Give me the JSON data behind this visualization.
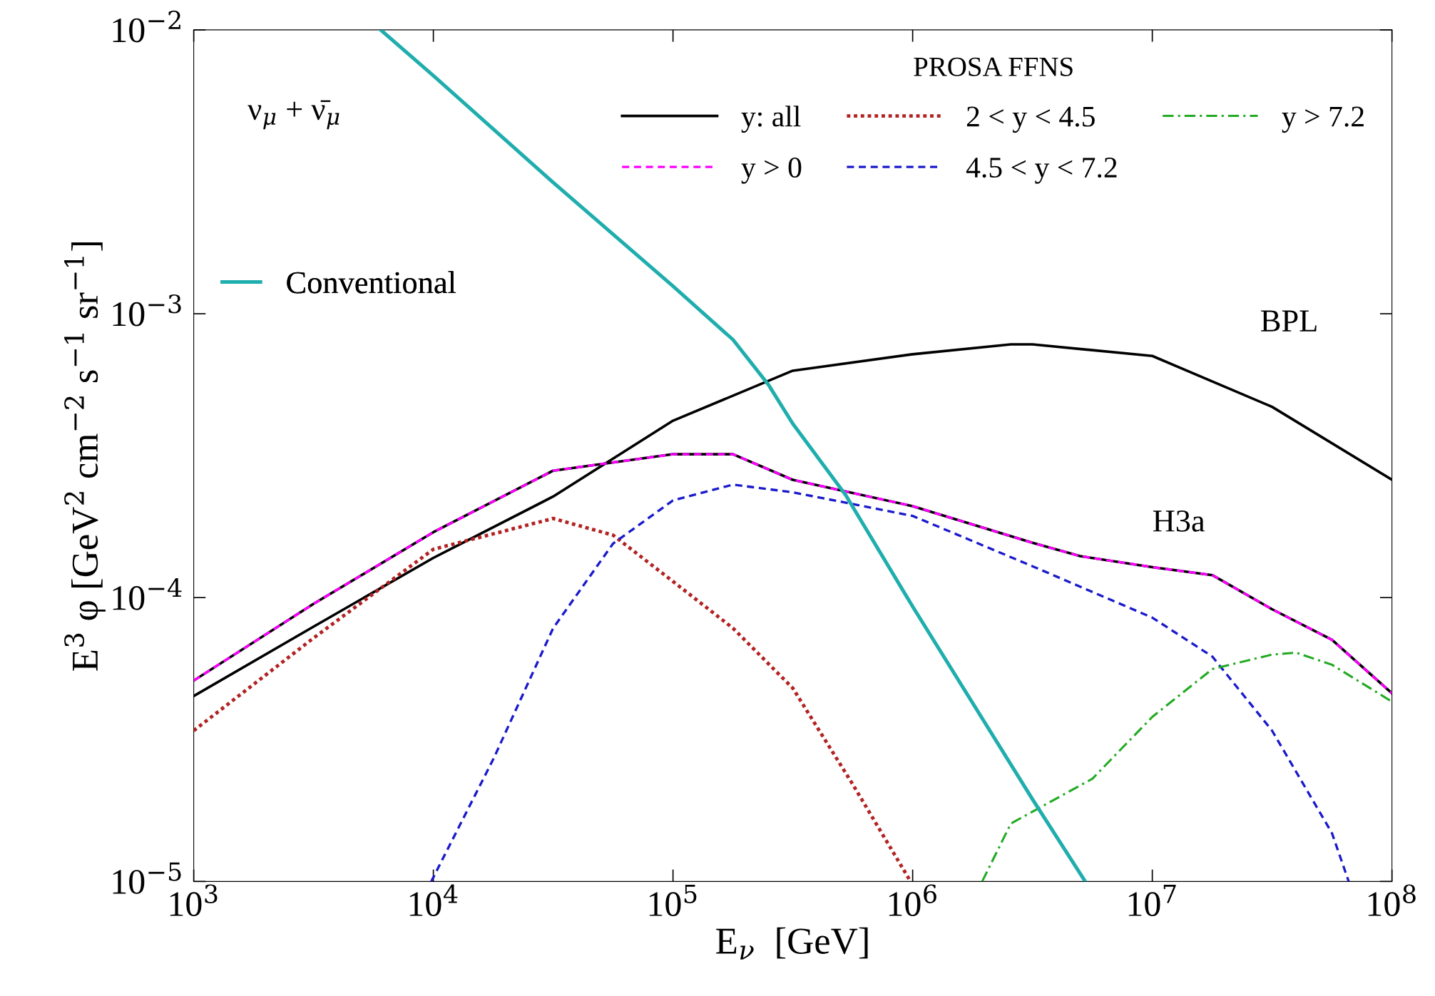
{
  "chart_data": {
    "type": "line",
    "xlabel": "E$_{ν}$  [GeV]",
    "ylabel": "E$^{3}$ φ [GeV$^{2}$ cm$^{−2}$ s$^{−1}$ sr$^{−1}$]",
    "log": "xy",
    "legend": "top right",
    "legend_title": "PROSA FFNS",
    "grid": false,
    "xlim": [
      1000,
      100000000
    ],
    "ylim": [
      1e-05,
      0.01
    ],
    "xticks": [
      {
        "value": 1000,
        "label": "10$^{3}$"
      },
      {
        "value": 10000,
        "label": "10$^{4}$"
      },
      {
        "value": 100000,
        "label": "10$^{5}$"
      },
      {
        "value": 1000000,
        "label": "10$^{6}$"
      },
      {
        "value": 10000000,
        "label": "10$^{7}$"
      },
      {
        "value": 100000000,
        "label": "10$^{8}$"
      }
    ],
    "yticks": [
      {
        "value": 1e-05,
        "label": "10$^{−5}$"
      },
      {
        "value": 0.0001,
        "label": "10$^{−4}$"
      },
      {
        "value": 0.001,
        "label": "10$^{−3}$"
      },
      {
        "value": 0.01,
        "label": "10$^{−2}$"
      }
    ],
    "annotations": [
      "ν$_{μ}$ + ν̄$_{μ}$",
      "BPL",
      "H3a"
    ],
    "series": [
      {
        "color": "#000000",
        "line_style": "solid",
        "x": [
          1000,
          3160,
          10000,
          31600,
          100000,
          316000,
          1000000,
          2570000,
          3160000,
          10000000,
          31600000,
          100000000
        ],
        "values": [
          4.5e-05,
          7.9e-05,
          0.000138,
          0.000227,
          0.00042,
          0.00063,
          0.00072,
          0.00078,
          0.00078,
          0.00071,
          0.00047,
          0.00026
        ]
      },
      {
        "name": "y: all",
        "color": "#000000",
        "line_style": "solid",
        "x": [
          1000,
          3160,
          10000,
          31600,
          100000,
          178000,
          316000,
          1000000,
          3160000,
          5000000,
          10000000,
          17800000,
          31600000,
          56200000,
          100000000
        ],
        "values": [
          5.1e-05,
          9.5e-05,
          0.00017,
          0.00028,
          0.00032,
          0.00032,
          0.00026,
          0.00021,
          0.000156,
          0.00014,
          0.000128,
          0.00012,
          9.1e-05,
          7.1e-05,
          4.6e-05
        ]
      },
      {
        "name": "y > 0",
        "color": "#ff00ff",
        "line_style": "dashed",
        "x": [
          1000,
          3160,
          10000,
          31600,
          100000,
          178000,
          316000,
          1000000,
          3160000,
          5000000,
          10000000,
          17800000,
          31600000,
          56200000,
          100000000
        ],
        "values": [
          5.1e-05,
          9.5e-05,
          0.00017,
          0.00028,
          0.00032,
          0.00032,
          0.00026,
          0.00021,
          0.000156,
          0.00014,
          0.000128,
          0.00012,
          9.1e-05,
          7.1e-05,
          4.6e-05
        ]
      },
      {
        "name": "2 < y < 4.5",
        "color": "#b22222",
        "line_style": "dotted",
        "x": [
          1000,
          3160,
          10000,
          31600,
          56200,
          100000,
          178000,
          316000,
          562000,
          980000
        ],
        "values": [
          3.4e-05,
          7.2e-05,
          0.000148,
          0.00019,
          0.000166,
          0.000114,
          7.8e-05,
          4.8e-05,
          2.2e-05,
          1e-05
        ]
      },
      {
        "name": "4.5 < y < 7.2",
        "color": "#1a1acc",
        "line_style": "dashed",
        "x": [
          9800,
          17800,
          31600,
          56200,
          100000,
          178000,
          316000,
          1000000,
          3160000,
          10000000,
          17800000,
          31600000,
          56200000,
          66000000
        ],
        "values": [
          1e-05,
          2.7e-05,
          7.8e-05,
          0.000155,
          0.00022,
          0.00025,
          0.000235,
          0.000194,
          0.000129,
          8.5e-05,
          6.2e-05,
          3.4e-05,
          1.48e-05,
          1e-05
        ]
      },
      {
        "name": "y > 7.2",
        "color": "#22aa22",
        "line_style": "dashdot",
        "x": [
          1950000,
          2570000,
          5620000,
          10000000,
          17800000,
          31600000,
          39800000,
          56200000,
          100000000
        ],
        "values": [
          1e-05,
          1.6e-05,
          2.3e-05,
          3.8e-05,
          5.6e-05,
          6.3e-05,
          6.4e-05,
          5.8e-05,
          4.3e-05
        ]
      },
      {
        "name": "Conventional",
        "color": "#1fadad",
        "line_style": "solid",
        "x": [
          6030,
          10000,
          31600,
          100000,
          178000,
          251000,
          316000,
          525000,
          1000000,
          3160000,
          5250000
        ],
        "values": [
          0.01,
          0.0069,
          0.0029,
          0.00125,
          0.00081,
          0.00056,
          0.00041,
          0.00023,
          9.3e-05,
          1.95e-05,
          1e-05
        ]
      }
    ]
  }
}
